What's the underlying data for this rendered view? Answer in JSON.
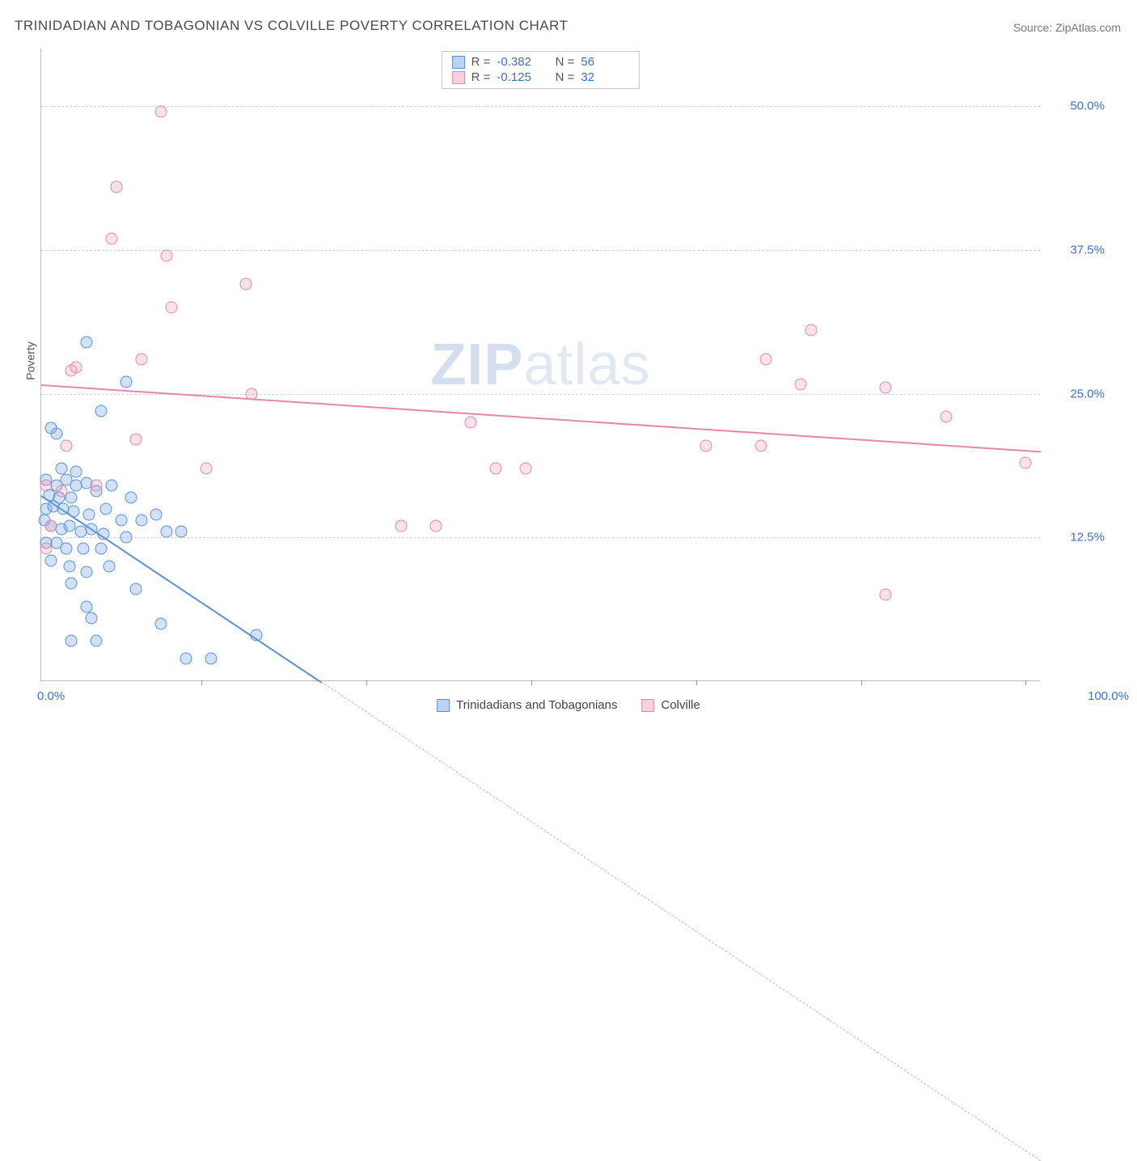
{
  "title": "TRINIDADIAN AND TOBAGONIAN VS COLVILLE POVERTY CORRELATION CHART",
  "source": "Source: ZipAtlas.com",
  "ylabel": "Poverty",
  "watermark_a": "ZIP",
  "watermark_b": "atlas",
  "chart": {
    "type": "scatter",
    "xlim": [
      0,
      100
    ],
    "ylim": [
      0,
      55
    ],
    "xticks": [
      {
        "pos": 0,
        "label": "0.0%"
      },
      {
        "pos": 100,
        "label": "100.0%"
      }
    ],
    "xmarks_pct": [
      16.0,
      32.5,
      49.0,
      65.5,
      82.0,
      98.5
    ],
    "yticks": [
      {
        "pos": 12.5,
        "label": "12.5%"
      },
      {
        "pos": 25.0,
        "label": "25.0%"
      },
      {
        "pos": 37.5,
        "label": "37.5%"
      },
      {
        "pos": 50.0,
        "label": "50.0%"
      }
    ],
    "series": [
      {
        "name": "Trinidadians and Tobagonians",
        "color": "#5a8fd6",
        "fill": "rgba(120,170,235,0.35)",
        "class": "blue",
        "R": "-0.382",
        "N": "56",
        "trend": {
          "x1": 0,
          "y1": 16.2,
          "x2": 28,
          "y2": 0,
          "dash_to": 100
        },
        "points": [
          [
            4.5,
            29.5
          ],
          [
            1.5,
            21.5
          ],
          [
            8.5,
            26.0
          ],
          [
            6.0,
            23.5
          ],
          [
            1.0,
            22.0
          ],
          [
            0.5,
            17.5
          ],
          [
            1.5,
            17.0
          ],
          [
            2.5,
            17.5
          ],
          [
            3.5,
            17.0
          ],
          [
            4.5,
            17.2
          ],
          [
            0.8,
            16.2
          ],
          [
            1.8,
            16.0
          ],
          [
            3.0,
            16.0
          ],
          [
            5.5,
            16.5
          ],
          [
            7.0,
            17.0
          ],
          [
            9.0,
            16.0
          ],
          [
            0.5,
            15.0
          ],
          [
            1.2,
            15.2
          ],
          [
            2.2,
            15.0
          ],
          [
            3.2,
            14.8
          ],
          [
            4.8,
            14.5
          ],
          [
            6.5,
            15.0
          ],
          [
            8.0,
            14.0
          ],
          [
            10.0,
            14.0
          ],
          [
            11.5,
            14.5
          ],
          [
            0.3,
            14.0
          ],
          [
            1.0,
            13.5
          ],
          [
            2.0,
            13.2
          ],
          [
            2.8,
            13.5
          ],
          [
            4.0,
            13.0
          ],
          [
            5.0,
            13.2
          ],
          [
            6.2,
            12.8
          ],
          [
            8.5,
            12.5
          ],
          [
            12.5,
            13.0
          ],
          [
            14.0,
            13.0
          ],
          [
            0.5,
            12.0
          ],
          [
            1.5,
            12.0
          ],
          [
            2.5,
            11.5
          ],
          [
            4.2,
            11.5
          ],
          [
            6.0,
            11.5
          ],
          [
            1.0,
            10.5
          ],
          [
            2.8,
            10.0
          ],
          [
            4.5,
            9.5
          ],
          [
            6.8,
            10.0
          ],
          [
            3.0,
            8.5
          ],
          [
            9.5,
            8.0
          ],
          [
            4.5,
            6.5
          ],
          [
            12.0,
            5.0
          ],
          [
            3.0,
            3.5
          ],
          [
            5.5,
            3.5
          ],
          [
            14.5,
            2.0
          ],
          [
            17.0,
            2.0
          ],
          [
            21.5,
            4.0
          ],
          [
            5.0,
            5.5
          ],
          [
            2.0,
            18.5
          ],
          [
            3.5,
            18.2
          ]
        ]
      },
      {
        "name": "Colville",
        "color": "#e388a8",
        "fill": "rgba(240,150,180,0.28)",
        "class": "pink",
        "R": "-0.125",
        "N": "32",
        "trend": {
          "x1": 0,
          "y1": 25.8,
          "x2": 100,
          "y2": 20.0
        },
        "points": [
          [
            12.0,
            49.5
          ],
          [
            7.5,
            43.0
          ],
          [
            7.0,
            38.5
          ],
          [
            12.5,
            37.0
          ],
          [
            13.0,
            32.5
          ],
          [
            20.5,
            34.5
          ],
          [
            77.0,
            30.5
          ],
          [
            72.5,
            28.0
          ],
          [
            10.0,
            28.0
          ],
          [
            3.0,
            27.0
          ],
          [
            3.5,
            27.3
          ],
          [
            84.5,
            25.5
          ],
          [
            76.0,
            25.8
          ],
          [
            21.0,
            25.0
          ],
          [
            90.5,
            23.0
          ],
          [
            2.5,
            20.5
          ],
          [
            43.0,
            22.5
          ],
          [
            9.5,
            21.0
          ],
          [
            66.5,
            20.5
          ],
          [
            72.0,
            20.5
          ],
          [
            16.5,
            18.5
          ],
          [
            45.5,
            18.5
          ],
          [
            48.5,
            18.5
          ],
          [
            98.5,
            19.0
          ],
          [
            0.5,
            17.0
          ],
          [
            2.0,
            16.5
          ],
          [
            5.5,
            17.0
          ],
          [
            1.0,
            13.5
          ],
          [
            36.0,
            13.5
          ],
          [
            39.5,
            13.5
          ],
          [
            0.5,
            11.5
          ],
          [
            84.5,
            7.5
          ]
        ]
      }
    ]
  },
  "legend": [
    {
      "class": "blue",
      "label": "Trinidadians and Tobagonians"
    },
    {
      "class": "pink",
      "label": "Colville"
    }
  ]
}
